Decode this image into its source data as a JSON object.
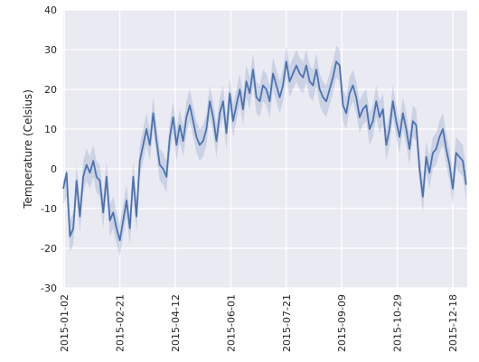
{
  "chart_data": {
    "type": "line",
    "title": "",
    "xlabel": "",
    "ylabel": "Temperature (Celsius)",
    "ylim": [
      -30,
      40
    ],
    "yticks": [
      -30,
      -20,
      -10,
      0,
      10,
      20,
      30,
      40
    ],
    "xlim": [
      "2015-01-01",
      "2015-12-31"
    ],
    "xticks": [
      "2015-01-02",
      "2015-02-21",
      "2015-04-12",
      "2015-06-01",
      "2015-07-21",
      "2015-09-09",
      "2015-10-29",
      "2015-12-18"
    ],
    "grid": true,
    "style": {
      "background": "#eaeaf2",
      "grid_color": "#ffffff",
      "line_color": "#4c72b0",
      "band_color": "#4c72b0"
    },
    "series": [
      {
        "x": [
          "2015-01-01",
          "2015-01-04",
          "2015-01-07",
          "2015-01-10",
          "2015-01-13",
          "2015-01-16",
          "2015-01-19",
          "2015-01-22",
          "2015-01-25",
          "2015-01-28",
          "2015-01-31",
          "2015-02-03",
          "2015-02-06",
          "2015-02-09",
          "2015-02-12",
          "2015-02-15",
          "2015-02-18",
          "2015-02-21",
          "2015-02-24",
          "2015-02-27",
          "2015-03-02",
          "2015-03-05",
          "2015-03-08",
          "2015-03-11",
          "2015-03-14",
          "2015-03-17",
          "2015-03-20",
          "2015-03-23",
          "2015-03-26",
          "2015-03-29",
          "2015-04-01",
          "2015-04-04",
          "2015-04-07",
          "2015-04-10",
          "2015-04-13",
          "2015-04-16",
          "2015-04-19",
          "2015-04-22",
          "2015-04-25",
          "2015-04-28",
          "2015-05-01",
          "2015-05-04",
          "2015-05-07",
          "2015-05-10",
          "2015-05-13",
          "2015-05-16",
          "2015-05-19",
          "2015-05-22",
          "2015-05-25",
          "2015-05-28",
          "2015-05-31",
          "2015-06-03",
          "2015-06-06",
          "2015-06-09",
          "2015-06-12",
          "2015-06-15",
          "2015-06-18",
          "2015-06-21",
          "2015-06-24",
          "2015-06-27",
          "2015-06-30",
          "2015-07-03",
          "2015-07-06",
          "2015-07-09",
          "2015-07-12",
          "2015-07-15",
          "2015-07-18",
          "2015-07-21",
          "2015-07-24",
          "2015-07-27",
          "2015-07-30",
          "2015-08-02",
          "2015-08-05",
          "2015-08-08",
          "2015-08-11",
          "2015-08-14",
          "2015-08-17",
          "2015-08-20",
          "2015-08-23",
          "2015-08-26",
          "2015-08-29",
          "2015-09-01",
          "2015-09-04",
          "2015-09-07",
          "2015-09-10",
          "2015-09-13",
          "2015-09-16",
          "2015-09-19",
          "2015-09-22",
          "2015-09-25",
          "2015-09-28",
          "2015-10-01",
          "2015-10-04",
          "2015-10-07",
          "2015-10-10",
          "2015-10-13",
          "2015-10-16",
          "2015-10-19",
          "2015-10-22",
          "2015-10-25",
          "2015-10-28",
          "2015-10-31",
          "2015-11-03",
          "2015-11-06",
          "2015-11-09",
          "2015-11-12",
          "2015-11-15",
          "2015-11-18",
          "2015-11-21",
          "2015-11-24",
          "2015-11-27",
          "2015-11-30",
          "2015-12-03",
          "2015-12-06",
          "2015-12-09",
          "2015-12-12",
          "2015-12-15",
          "2015-12-18",
          "2015-12-21",
          "2015-12-24",
          "2015-12-27",
          "2015-12-30"
        ],
        "values": [
          -5,
          -1,
          -17,
          -15,
          -3,
          -12,
          -2,
          1,
          -1,
          2,
          -2,
          -3,
          -11,
          -2,
          -13,
          -11,
          -15,
          -18,
          -13,
          -8,
          -15,
          -2,
          -12,
          2,
          6,
          10,
          6,
          14,
          7,
          1,
          0,
          -2,
          8,
          13,
          6,
          11,
          7,
          13,
          16,
          12,
          8,
          6,
          7,
          10,
          17,
          13,
          7,
          14,
          17,
          9,
          19,
          12,
          16,
          20,
          15,
          22,
          19,
          25,
          18,
          17,
          21,
          20,
          17,
          24,
          21,
          18,
          21,
          27,
          22,
          24,
          26,
          24,
          23,
          26,
          22,
          21,
          25,
          20,
          18,
          17,
          20,
          23,
          27,
          26,
          16,
          14,
          19,
          21,
          18,
          13,
          15,
          16,
          10,
          12,
          17,
          13,
          15,
          6,
          10,
          17,
          12,
          8,
          14,
          10,
          5,
          12,
          11,
          0,
          -7,
          3,
          -1,
          4,
          5,
          8,
          10,
          5,
          1,
          -5,
          4,
          3,
          2,
          -4
        ],
        "band": [
          [
            -9,
            -3
          ],
          [
            -7,
            0
          ],
          [
            -21,
            -13
          ],
          [
            -19,
            -11
          ],
          [
            -7,
            1
          ],
          [
            -16,
            -8
          ],
          [
            -6,
            2
          ],
          [
            -3,
            5
          ],
          [
            -5,
            3
          ],
          [
            -2,
            6
          ],
          [
            -6,
            2
          ],
          [
            -7,
            1
          ],
          [
            -15,
            -7
          ],
          [
            -6,
            2
          ],
          [
            -17,
            -9
          ],
          [
            -15,
            -7
          ],
          [
            -19,
            -11
          ],
          [
            -22,
            -14
          ],
          [
            -17,
            -9
          ],
          [
            -12,
            -4
          ],
          [
            -19,
            -11
          ],
          [
            -6,
            2
          ],
          [
            -16,
            -8
          ],
          [
            -2,
            6
          ],
          [
            2,
            10
          ],
          [
            6,
            14
          ],
          [
            2,
            10
          ],
          [
            10,
            18
          ],
          [
            3,
            11
          ],
          [
            -3,
            5
          ],
          [
            -4,
            4
          ],
          [
            -6,
            2
          ],
          [
            4,
            12
          ],
          [
            9,
            17
          ],
          [
            2,
            10
          ],
          [
            7,
            15
          ],
          [
            3,
            11
          ],
          [
            9,
            17
          ],
          [
            12,
            20
          ],
          [
            8,
            16
          ],
          [
            4,
            12
          ],
          [
            2,
            10
          ],
          [
            3,
            11
          ],
          [
            6,
            14
          ],
          [
            13,
            21
          ],
          [
            9,
            17
          ],
          [
            3,
            11
          ],
          [
            10,
            18
          ],
          [
            13,
            21
          ],
          [
            5,
            13
          ],
          [
            15,
            23
          ],
          [
            8,
            16
          ],
          [
            12,
            20
          ],
          [
            16,
            24
          ],
          [
            11,
            19
          ],
          [
            18,
            26
          ],
          [
            15,
            23
          ],
          [
            21,
            29
          ],
          [
            14,
            22
          ],
          [
            13,
            21
          ],
          [
            17,
            25
          ],
          [
            16,
            24
          ],
          [
            13,
            21
          ],
          [
            20,
            28
          ],
          [
            17,
            25
          ],
          [
            14,
            22
          ],
          [
            17,
            25
          ],
          [
            23,
            31
          ],
          [
            18,
            26
          ],
          [
            20,
            28
          ],
          [
            22,
            30
          ],
          [
            20,
            28
          ],
          [
            19,
            27
          ],
          [
            22,
            30
          ],
          [
            18,
            26
          ],
          [
            17,
            25
          ],
          [
            21,
            29
          ],
          [
            16,
            24
          ],
          [
            14,
            22
          ],
          [
            13,
            21
          ],
          [
            16,
            24
          ],
          [
            19,
            27
          ],
          [
            23,
            31
          ],
          [
            22,
            30
          ],
          [
            12,
            20
          ],
          [
            10,
            18
          ],
          [
            15,
            23
          ],
          [
            17,
            25
          ],
          [
            14,
            22
          ],
          [
            9,
            17
          ],
          [
            11,
            19
          ],
          [
            12,
            20
          ],
          [
            6,
            14
          ],
          [
            8,
            16
          ],
          [
            13,
            21
          ],
          [
            9,
            17
          ],
          [
            11,
            19
          ],
          [
            2,
            10
          ],
          [
            6,
            14
          ],
          [
            13,
            21
          ],
          [
            8,
            16
          ],
          [
            4,
            12
          ],
          [
            10,
            18
          ],
          [
            6,
            14
          ],
          [
            1,
            9
          ],
          [
            8,
            16
          ],
          [
            7,
            15
          ],
          [
            -4,
            4
          ],
          [
            -11,
            -3
          ],
          [
            -1,
            7
          ],
          [
            -5,
            3
          ],
          [
            0,
            8
          ],
          [
            1,
            9
          ],
          [
            4,
            12
          ],
          [
            6,
            14
          ],
          [
            1,
            9
          ],
          [
            -3,
            5
          ],
          [
            -9,
            -1
          ],
          [
            0,
            8
          ],
          [
            -1,
            7
          ],
          [
            -2,
            6
          ],
          [
            -8,
            0
          ]
        ]
      }
    ]
  }
}
